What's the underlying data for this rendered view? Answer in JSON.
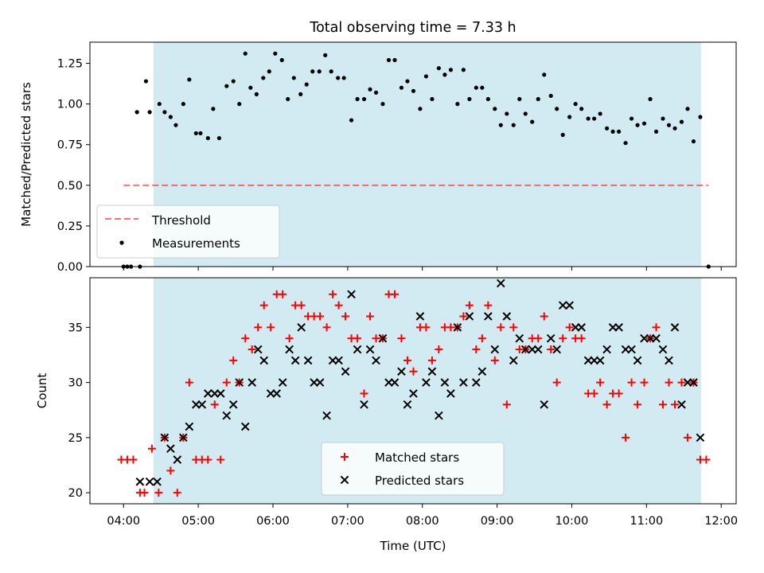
{
  "title": "Total observing time = 7.33 h",
  "colors": {
    "shade": "#add8e6",
    "threshold": "#ff0000",
    "measurement": "#000000",
    "matched": "#ff0000",
    "predicted": "#000000"
  },
  "chart_data": [
    {
      "type": "scatter",
      "panel": "top",
      "ylabel": "Matched/Predicted stars",
      "ylim": [
        0,
        1.38
      ],
      "yticks": [
        0.0,
        0.25,
        0.5,
        0.75,
        1.0,
        1.25
      ],
      "ytick_labels": [
        "0.00",
        "0.25",
        "0.50",
        "0.75",
        "1.00",
        "1.25"
      ],
      "xlim_hours": [
        3.55,
        12.2
      ],
      "shaded_span_hours": [
        4.4,
        11.73
      ],
      "legend_placement": "lower-left",
      "threshold": {
        "name": "Threshold",
        "value": 0.5,
        "x_range_hours": [
          4.0,
          11.83
        ],
        "style": "dashed"
      },
      "series": [
        {
          "name": "Measurements",
          "x_hours": [
            4.0,
            4.05,
            4.1,
            4.18,
            4.22,
            4.3,
            4.35,
            4.48,
            4.55,
            4.63,
            4.7,
            4.8,
            4.88,
            4.97,
            5.03,
            5.13,
            5.2,
            5.28,
            5.38,
            5.47,
            5.55,
            5.63,
            5.7,
            5.78,
            5.87,
            5.95,
            6.03,
            6.12,
            6.2,
            6.28,
            6.37,
            6.45,
            6.53,
            6.62,
            6.7,
            6.78,
            6.87,
            6.95,
            7.05,
            7.13,
            7.22,
            7.3,
            7.38,
            7.47,
            7.55,
            7.63,
            7.72,
            7.8,
            7.88,
            7.97,
            8.05,
            8.13,
            8.22,
            8.3,
            8.38,
            8.47,
            8.55,
            8.63,
            8.72,
            8.8,
            8.88,
            8.97,
            9.05,
            9.13,
            9.22,
            9.3,
            9.38,
            9.47,
            9.55,
            9.63,
            9.72,
            9.8,
            9.88,
            9.97,
            10.05,
            10.13,
            10.22,
            10.3,
            10.38,
            10.47,
            10.55,
            10.63,
            10.72,
            10.8,
            10.88,
            10.97,
            11.05,
            11.13,
            11.22,
            11.3,
            11.38,
            11.47,
            11.55,
            11.63,
            11.72,
            11.83
          ],
          "y": [
            0.0,
            0.0,
            0.0,
            0.95,
            0.0,
            1.14,
            0.95,
            1.0,
            0.95,
            0.92,
            0.87,
            1.0,
            1.15,
            0.82,
            0.82,
            0.79,
            0.97,
            0.79,
            1.11,
            1.14,
            1.0,
            1.31,
            1.1,
            1.06,
            1.16,
            1.2,
            1.31,
            1.27,
            1.03,
            1.16,
            1.06,
            1.12,
            1.2,
            1.2,
            1.3,
            1.2,
            1.16,
            1.16,
            0.9,
            1.03,
            1.03,
            1.09,
            1.07,
            1.0,
            1.27,
            1.27,
            1.1,
            1.14,
            1.08,
            0.97,
            1.17,
            1.03,
            1.22,
            1.18,
            1.21,
            1.0,
            1.21,
            1.03,
            1.1,
            1.1,
            1.03,
            0.97,
            0.87,
            0.94,
            0.87,
            1.03,
            0.94,
            0.89,
            1.03,
            1.18,
            1.05,
            0.97,
            0.81,
            0.92,
            1.0,
            0.97,
            0.91,
            0.91,
            0.94,
            0.85,
            0.83,
            0.83,
            0.76,
            0.91,
            0.87,
            0.88,
            1.03,
            0.83,
            0.91,
            0.87,
            0.85,
            0.89,
            0.97,
            0.77,
            0.92,
            0.0
          ]
        }
      ]
    },
    {
      "type": "scatter",
      "panel": "bottom",
      "ylabel": "Count",
      "xlabel": "Time (UTC)",
      "ylim": [
        19.0,
        39.5
      ],
      "yticks": [
        20,
        25,
        30,
        35
      ],
      "ytick_labels": [
        "20",
        "25",
        "30",
        "35"
      ],
      "xlim_hours": [
        3.55,
        12.2
      ],
      "xticks_hours": [
        4,
        5,
        6,
        7,
        8,
        9,
        10,
        11,
        12
      ],
      "xtick_labels": [
        "04:00",
        "05:00",
        "06:00",
        "07:00",
        "08:00",
        "09:00",
        "10:00",
        "11:00",
        "12:00"
      ],
      "shaded_span_hours": [
        4.4,
        11.73
      ],
      "legend_placement": "lower-center",
      "series": [
        {
          "name": "Matched stars",
          "marker": "+",
          "x_hours": [
            3.97,
            4.05,
            4.13,
            4.22,
            4.28,
            4.38,
            4.47,
            4.55,
            4.63,
            4.72,
            4.8,
            4.88,
            4.97,
            5.05,
            5.13,
            5.22,
            5.3,
            5.38,
            5.47,
            5.55,
            5.63,
            5.72,
            5.8,
            5.88,
            5.97,
            6.05,
            6.13,
            6.22,
            6.3,
            6.38,
            6.47,
            6.55,
            6.63,
            6.72,
            6.8,
            6.88,
            6.97,
            7.05,
            7.13,
            7.22,
            7.3,
            7.38,
            7.47,
            7.55,
            7.63,
            7.72,
            7.8,
            7.88,
            7.97,
            8.05,
            8.13,
            8.22,
            8.3,
            8.38,
            8.47,
            8.55,
            8.63,
            8.72,
            8.8,
            8.88,
            8.97,
            9.05,
            9.13,
            9.22,
            9.3,
            9.38,
            9.47,
            9.55,
            9.63,
            9.72,
            9.8,
            9.88,
            9.97,
            10.05,
            10.13,
            10.22,
            10.3,
            10.38,
            10.47,
            10.55,
            10.63,
            10.72,
            10.8,
            10.88,
            10.97,
            11.05,
            11.13,
            11.22,
            11.3,
            11.38,
            11.47,
            11.55,
            11.63,
            11.72,
            11.8
          ],
          "y": [
            23,
            23,
            23,
            20,
            20,
            24,
            20,
            25,
            22,
            20,
            25,
            30,
            23,
            23,
            23,
            28,
            23,
            30,
            32,
            30,
            34,
            33,
            35,
            37,
            35,
            38,
            38,
            34,
            37,
            37,
            36,
            36,
            36,
            35,
            38,
            37,
            36,
            34,
            34,
            29,
            36,
            34,
            34,
            38,
            38,
            34,
            32,
            31,
            35,
            35,
            32,
            33,
            35,
            35,
            35,
            36,
            37,
            33,
            34,
            37,
            32,
            35,
            28,
            35,
            33,
            33,
            34,
            34,
            36,
            33,
            30,
            34,
            35,
            34,
            34,
            29,
            29,
            30,
            28,
            29,
            29,
            25,
            30,
            28,
            30,
            34,
            35,
            28,
            30,
            28,
            30,
            25,
            30,
            23,
            23
          ]
        },
        {
          "name": "Predicted stars",
          "marker": "x",
          "x_hours": [
            4.22,
            4.35,
            4.45,
            4.55,
            4.63,
            4.72,
            4.8,
            4.88,
            4.97,
            5.05,
            5.13,
            5.22,
            5.3,
            5.38,
            5.47,
            5.55,
            5.63,
            5.72,
            5.8,
            5.88,
            5.97,
            6.05,
            6.13,
            6.22,
            6.3,
            6.38,
            6.47,
            6.55,
            6.63,
            6.72,
            6.8,
            6.88,
            6.97,
            7.05,
            7.13,
            7.22,
            7.3,
            7.38,
            7.47,
            7.55,
            7.63,
            7.72,
            7.8,
            7.88,
            7.97,
            8.05,
            8.13,
            8.22,
            8.3,
            8.38,
            8.47,
            8.55,
            8.63,
            8.72,
            8.8,
            8.88,
            8.97,
            9.05,
            9.13,
            9.22,
            9.3,
            9.38,
            9.47,
            9.55,
            9.63,
            9.72,
            9.8,
            9.88,
            9.97,
            10.05,
            10.13,
            10.22,
            10.3,
            10.38,
            10.47,
            10.55,
            10.63,
            10.72,
            10.8,
            10.88,
            10.97,
            11.05,
            11.13,
            11.22,
            11.3,
            11.38,
            11.47,
            11.55,
            11.63,
            11.72
          ],
          "y": [
            21,
            21,
            21,
            25,
            24,
            23,
            25,
            26,
            28,
            28,
            29,
            29,
            29,
            27,
            28,
            30,
            26,
            30,
            33,
            32,
            29,
            29,
            30,
            33,
            32,
            35,
            32,
            30,
            30,
            27,
            32,
            32,
            31,
            38,
            33,
            28,
            33,
            32,
            34,
            30,
            30,
            31,
            28,
            29,
            36,
            30,
            31,
            27,
            30,
            29,
            35,
            30,
            36,
            30,
            31,
            36,
            33,
            39,
            36,
            32,
            34,
            33,
            33,
            33,
            28,
            34,
            33,
            37,
            37,
            35,
            35,
            32,
            32,
            32,
            33,
            35,
            35,
            33,
            33,
            32,
            34,
            34,
            34,
            33,
            32,
            35,
            28,
            30,
            30,
            25
          ]
        }
      ]
    }
  ]
}
